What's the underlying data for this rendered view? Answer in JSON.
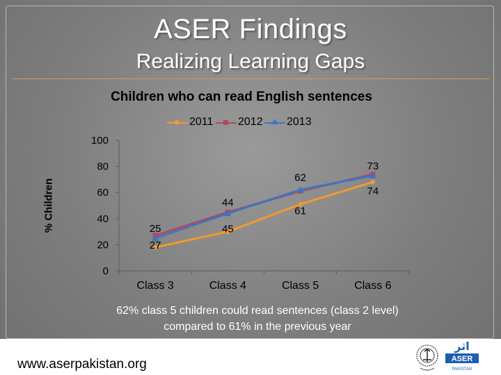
{
  "slide": {
    "title": "ASER Findings",
    "subtitle": "Realizing Learning Gaps",
    "caption_line1": "62% class 5 children could read sentences (class 2 level)",
    "caption_line2": "compared to 61% in the previous year",
    "website": "www.aserpakistan.org",
    "logo_text": "ASER PAKISTAN",
    "logo_arabic": "اثر"
  },
  "colors": {
    "series_2011": "#f39a2e",
    "series_2012": "#b5485a",
    "series_2013": "#3f73c0",
    "background": "#8a8a8a",
    "title_text": "#ffffff",
    "aser_logo": "#1d5db0"
  },
  "chart_data": {
    "type": "line",
    "title": "Children who can read English sentences",
    "xlabel": "",
    "ylabel": "% Children",
    "categories": [
      "Class 3",
      "Class 4",
      "Class 5",
      "Class 6"
    ],
    "ylim": [
      0,
      100
    ],
    "yticks": [
      0,
      20,
      40,
      60,
      80,
      100
    ],
    "grid": false,
    "legend_position": "top",
    "series": [
      {
        "name": "2011",
        "values": [
          18,
          30,
          51,
          68
        ],
        "marker": "diamond",
        "labels": [
          null,
          null,
          null,
          null
        ]
      },
      {
        "name": "2012",
        "values": [
          27,
          45,
          61,
          74
        ],
        "marker": "square",
        "labels": [
          "27",
          "45",
          "61",
          "74"
        ]
      },
      {
        "name": "2013",
        "values": [
          25,
          44,
          62,
          73
        ],
        "marker": "triangle",
        "labels": [
          "25",
          "44",
          "62",
          "73"
        ]
      }
    ]
  }
}
